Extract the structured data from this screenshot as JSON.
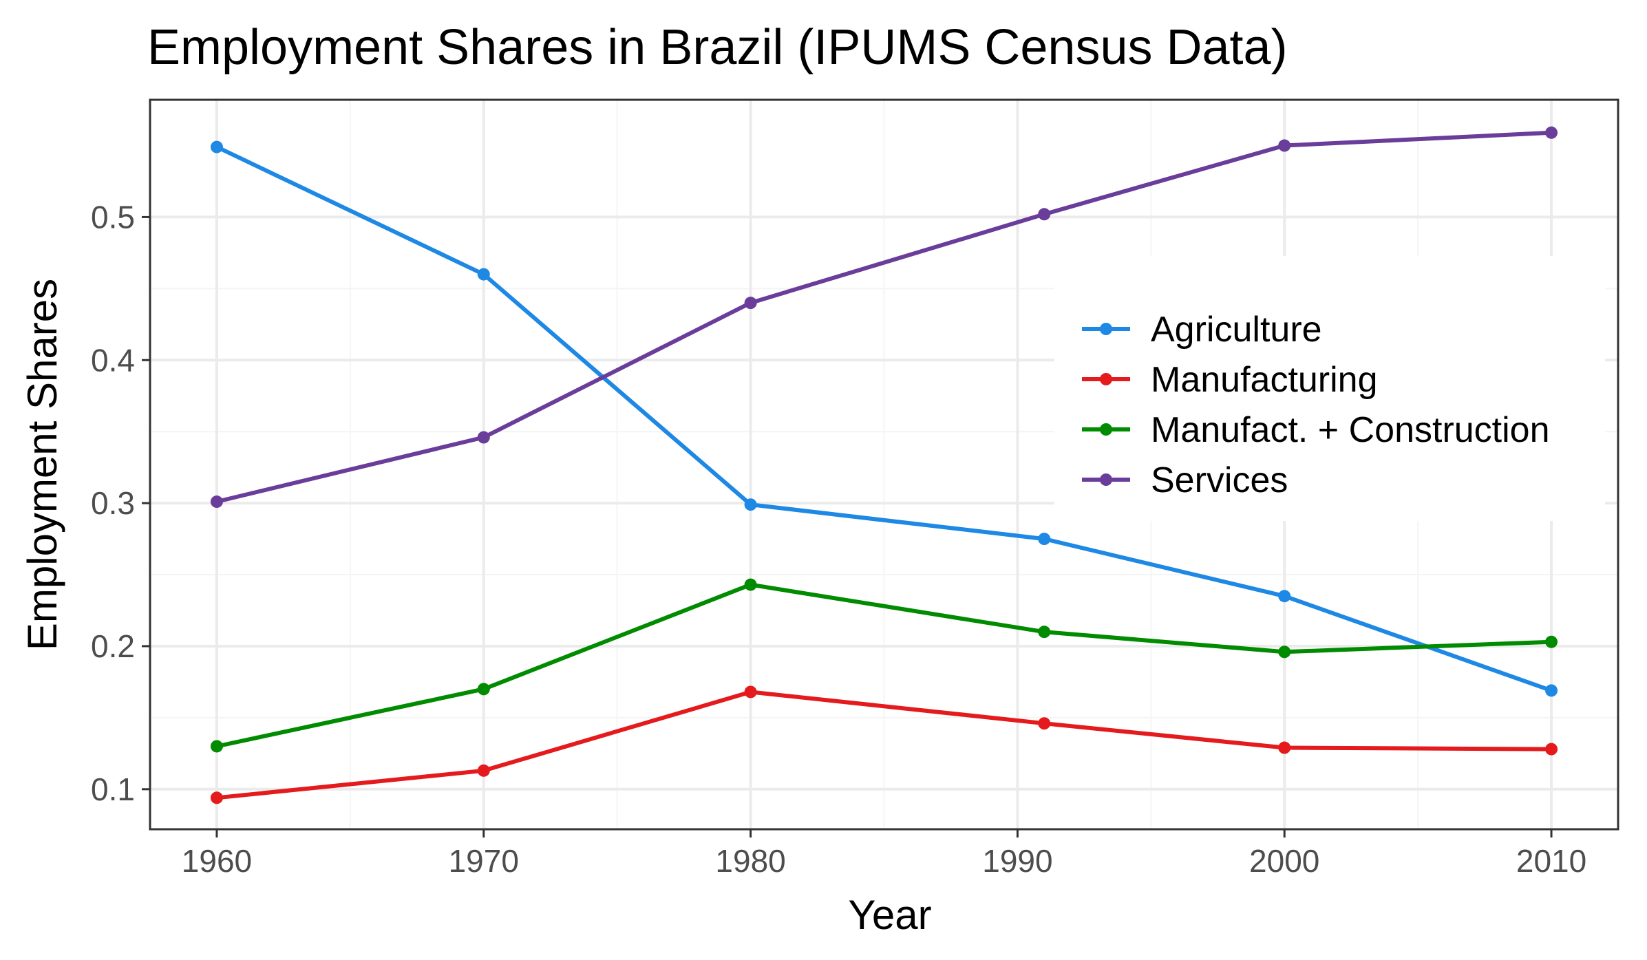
{
  "chart_data": {
    "type": "line",
    "title": "Employment Shares in Brazil (IPUMS Census Data)",
    "xlabel": "Year",
    "ylabel": "Employment Shares",
    "x": [
      1960,
      1970,
      1980,
      1991,
      2000,
      2010
    ],
    "x_ticks": [
      1960,
      1970,
      1980,
      1990,
      2000,
      2010
    ],
    "y_ticks": [
      0.1,
      0.2,
      0.3,
      0.4,
      0.5
    ],
    "xlim": [
      1957.5,
      2012.5
    ],
    "ylim": [
      0.072,
      0.582
    ],
    "grid": true,
    "legend_position": "right",
    "series": [
      {
        "name": "Agriculture",
        "color": "#1E88E5",
        "values": [
          0.549,
          0.46,
          0.299,
          0.275,
          0.235,
          0.169
        ]
      },
      {
        "name": "Manufacturing",
        "color": "#E41A1C",
        "values": [
          0.094,
          0.113,
          0.168,
          0.146,
          0.129,
          0.128
        ]
      },
      {
        "name": "Manufact. + Construction",
        "color": "#008B00",
        "values": [
          0.13,
          0.17,
          0.243,
          0.21,
          0.196,
          0.203
        ]
      },
      {
        "name": "Services",
        "color": "#6A3D9A",
        "values": [
          0.301,
          0.346,
          0.44,
          0.502,
          0.55,
          0.559
        ]
      }
    ]
  }
}
